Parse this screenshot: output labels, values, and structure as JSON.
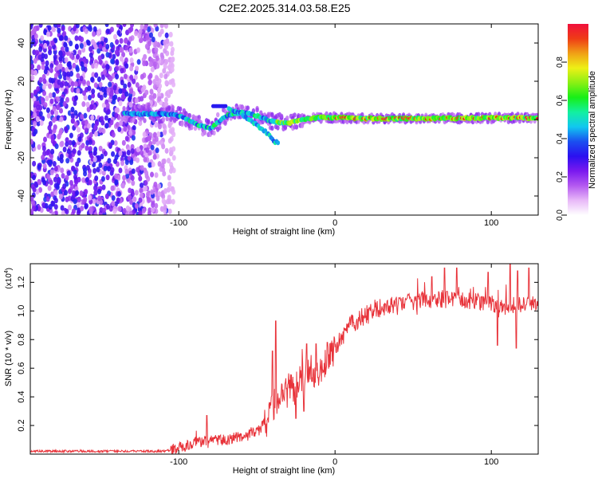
{
  "title": "C2E2.2025.314.03.58.E25",
  "colors": {
    "snr_line": "#e8333a",
    "axis": "#000000",
    "colormap": [
      "#ffffff",
      "#e8b8f8",
      "#b45af0",
      "#7a19ef",
      "#2b10f0",
      "#1a4ff0",
      "#11c7f0",
      "#12f0a0",
      "#17ef17",
      "#8af014",
      "#eef016",
      "#f0a016",
      "#ef3c16",
      "#f0103c"
    ]
  },
  "chart_data": [
    {
      "type": "heatmap",
      "title": "C2E2.2025.314.03.58.E25",
      "xlabel": "Height of straight line (km)",
      "ylabel": "Frequency (Hz)",
      "xlim": [
        -195,
        130
      ],
      "ylim": [
        -50,
        50
      ],
      "xticks": [
        -100,
        0,
        100
      ],
      "xtick_labels": [
        "-100",
        "0",
        "100"
      ],
      "yticks": [
        -40,
        -20,
        0,
        20,
        40
      ],
      "ytick_labels": [
        "-40",
        "-20",
        "0",
        "20",
        "40"
      ],
      "colorbar": {
        "label": "Normalized spectral amplitude",
        "range": [
          0,
          1
        ],
        "ticks": [
          0.0,
          0.2,
          0.4,
          0.6,
          0.8
        ],
        "tick_labels": [
          "0.0",
          "0.2",
          "0.4",
          "0.6",
          "0.8"
        ]
      },
      "ridge": {
        "description_points": [
          [
            -130,
            3
          ],
          [
            -110,
            3
          ],
          [
            -100,
            2
          ],
          [
            -90,
            -2
          ],
          [
            -80,
            -5
          ],
          [
            -70,
            2
          ],
          [
            -60,
            4
          ],
          [
            -50,
            2
          ],
          [
            -40,
            -1
          ],
          [
            -30,
            -2
          ],
          [
            -20,
            0
          ],
          [
            -10,
            1
          ],
          [
            0,
            1
          ],
          [
            20,
            0.5
          ],
          [
            60,
            0.5
          ],
          [
            100,
            0.8
          ],
          [
            130,
            0.8
          ]
        ],
        "secondary_branch": [
          [
            -68,
            6
          ],
          [
            -60,
            3
          ],
          [
            -50,
            -3
          ],
          [
            -42,
            -8
          ],
          [
            -38,
            -12
          ]
        ]
      }
    },
    {
      "type": "line",
      "xlabel": "Height of straight line (km)",
      "ylabel": "SNR (10 * v/v)",
      "y_multiplier": "(x10",
      "y_multiplier_exp": "4",
      "xlim": [
        -195,
        130
      ],
      "ylim": [
        0,
        1.33
      ],
      "xticks": [
        -100,
        0,
        100
      ],
      "xtick_labels": [
        "-100",
        "0",
        "100"
      ],
      "yticks": [
        0.2,
        0.4,
        0.6,
        0.8,
        1.0,
        1.2
      ],
      "ytick_labels": [
        "0.2",
        "0.4",
        "0.6",
        "0.8",
        "1.0",
        "1.2"
      ],
      "series": [
        {
          "name": "SNR",
          "trend": [
            [
              -195,
              0.02
            ],
            [
              -110,
              0.02
            ],
            [
              -100,
              0.04
            ],
            [
              -90,
              0.08
            ],
            [
              -80,
              0.1
            ],
            [
              -70,
              0.1
            ],
            [
              -60,
              0.12
            ],
            [
              -50,
              0.15
            ],
            [
              -45,
              0.22
            ],
            [
              -40,
              0.3
            ],
            [
              -35,
              0.45
            ],
            [
              -30,
              0.5
            ],
            [
              -25,
              0.45
            ],
            [
              -20,
              0.55
            ],
            [
              -15,
              0.58
            ],
            [
              -10,
              0.6
            ],
            [
              -5,
              0.65
            ],
            [
              0,
              0.75
            ],
            [
              5,
              0.82
            ],
            [
              10,
              0.9
            ],
            [
              20,
              0.97
            ],
            [
              30,
              1.02
            ],
            [
              40,
              1.05
            ],
            [
              60,
              1.08
            ],
            [
              80,
              1.08
            ],
            [
              100,
              1.05
            ],
            [
              110,
              1.03
            ],
            [
              120,
              1.05
            ],
            [
              130,
              1.05
            ]
          ],
          "peaks": [
            [
              -82,
              0.27
            ],
            [
              -38,
              0.93
            ],
            [
              -40,
              0.72
            ],
            [
              -18,
              0.77
            ],
            [
              -12,
              0.77
            ],
            [
              -5,
              0.78
            ],
            [
              12,
              0.92
            ],
            [
              25,
              1.0
            ],
            [
              62,
              1.24
            ],
            [
              70,
              1.3
            ],
            [
              78,
              1.3
            ],
            [
              98,
              1.27
            ],
            [
              112,
              1.33
            ],
            [
              117,
              1.28
            ],
            [
              124,
              1.3
            ]
          ],
          "dips": [
            [
              -25,
              0.25
            ],
            [
              -20,
              0.3
            ],
            [
              104,
              0.76
            ],
            [
              116,
              0.74
            ]
          ]
        }
      ]
    }
  ]
}
